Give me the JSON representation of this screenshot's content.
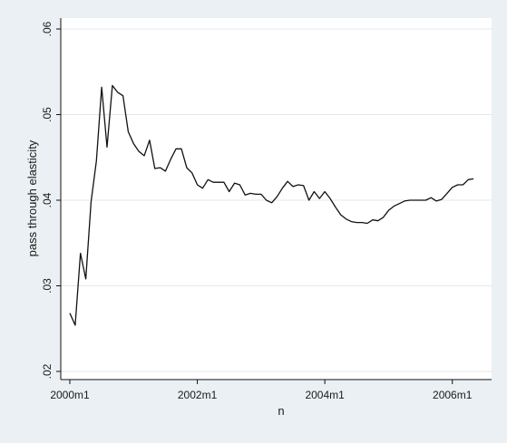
{
  "chart_data": {
    "type": "line",
    "title": "",
    "xlabel": "n",
    "ylabel": "pass through elasticity",
    "ylim": [
      0.02,
      0.06
    ],
    "xlim": [
      0,
      77
    ],
    "x_ticks": [
      {
        "value": 0,
        "label": "2000m1"
      },
      {
        "value": 24,
        "label": "2002m1"
      },
      {
        "value": 48,
        "label": "2004m1"
      },
      {
        "value": 72,
        "label": "2006m1"
      }
    ],
    "y_ticks": [
      {
        "value": 0.02,
        "label": ".02"
      },
      {
        "value": 0.03,
        "label": ".03"
      },
      {
        "value": 0.04,
        "label": ".04"
      },
      {
        "value": 0.05,
        "label": ".05"
      },
      {
        "value": 0.06,
        "label": ".06"
      }
    ],
    "grid": "horizontal",
    "colors": {
      "line": "#111111",
      "grid": "#e3e7ea",
      "plot_bg": "#ffffff",
      "outer_bg": "#eaf0f3"
    },
    "series": [
      {
        "x": [
          0,
          1,
          2,
          3,
          4,
          5,
          6,
          7,
          8,
          9,
          10,
          11,
          12,
          13,
          14,
          15,
          16,
          17,
          18,
          19,
          20,
          21,
          22,
          23,
          24,
          25,
          26,
          27,
          28,
          29,
          30,
          31,
          32,
          33,
          34,
          35,
          36,
          37,
          38,
          39,
          40,
          41,
          42,
          43,
          44,
          45,
          46,
          47,
          48,
          49,
          50,
          51,
          52,
          53,
          54,
          55,
          56,
          57,
          58,
          59,
          60,
          61,
          62,
          63,
          64,
          65,
          66,
          67,
          68,
          69,
          70,
          71,
          72,
          73,
          74,
          75,
          76
        ],
        "y": [
          0.0268,
          0.0254,
          0.0338,
          0.0308,
          0.0398,
          0.0446,
          0.0532,
          0.0462,
          0.0534,
          0.0526,
          0.0522,
          0.048,
          0.0466,
          0.0457,
          0.0452,
          0.047,
          0.0437,
          0.0438,
          0.0434,
          0.0448,
          0.046,
          0.046,
          0.0438,
          0.0432,
          0.0418,
          0.0414,
          0.0424,
          0.0421,
          0.0421,
          0.0421,
          0.041,
          0.042,
          0.0418,
          0.0406,
          0.0408,
          0.0407,
          0.0407,
          0.04,
          0.0397,
          0.0404,
          0.0414,
          0.0422,
          0.0416,
          0.0418,
          0.0417,
          0.04,
          0.041,
          0.0402,
          0.041,
          0.0402,
          0.0392,
          0.0383,
          0.0378,
          0.0375,
          0.0374,
          0.0374,
          0.0373,
          0.0377,
          0.0376,
          0.038,
          0.0388,
          0.0393,
          0.0396,
          0.0399,
          0.04,
          0.04,
          0.04,
          0.04,
          0.0403,
          0.0399,
          0.0401,
          0.0408,
          0.0415,
          0.0418,
          0.0418,
          0.0424,
          0.0425
        ]
      }
    ]
  }
}
